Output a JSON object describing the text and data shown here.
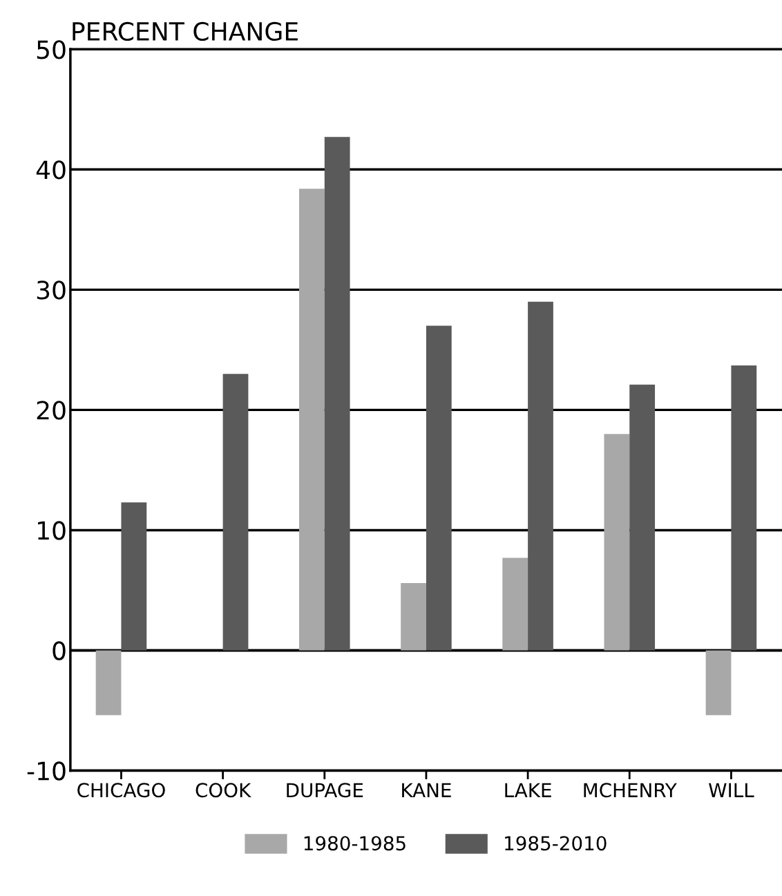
{
  "chart_data": {
    "type": "bar",
    "ylabel": "PERCENT CHANGE",
    "categories": [
      "CHICAGO",
      "COOK",
      "DUPAGE",
      "KANE",
      "LAKE",
      "MCHENRY",
      "WILL"
    ],
    "series": [
      {
        "name": "1980-1985",
        "color": "#a8a8a8",
        "values": [
          -5.4,
          null,
          38.4,
          5.6,
          7.7,
          18.0,
          -5.4
        ]
      },
      {
        "name": "1985-2010",
        "color": "#5a5a5a",
        "values": [
          12.3,
          23.0,
          42.7,
          27.0,
          29.0,
          22.1,
          23.7
        ]
      }
    ],
    "ylim": [
      -10,
      50
    ],
    "yticks": [
      -10,
      0,
      10,
      20,
      30,
      40,
      50
    ],
    "grid": "y",
    "legend": "bottom"
  }
}
